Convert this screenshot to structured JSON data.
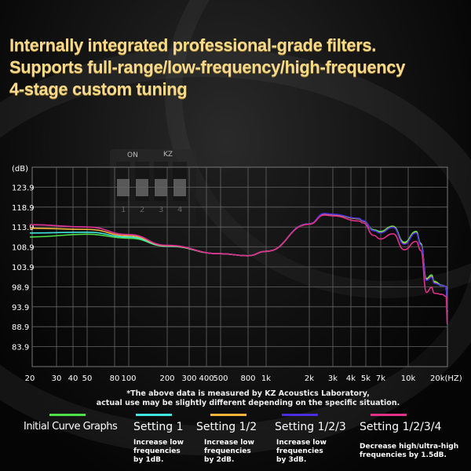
{
  "headline": {
    "line1": "Internally integrated professional-grade filters.",
    "line2": "Supports full-range/low-frequency/high-frequency",
    "line3": "4-stage custom tuning"
  },
  "dip_switch": {
    "on_label": "ON",
    "brand_label": "KZ",
    "numbers": [
      "1",
      "2",
      "3",
      "4"
    ]
  },
  "footnote": {
    "line1": "*The above data is measured by KZ Acoustics Laboratory,",
    "line2": "actual use may be slightly different depending on the specific situation."
  },
  "chart_data": {
    "type": "line",
    "title": "",
    "ylabel": "(dB)",
    "xlabel": "(HZ)",
    "xscale": "log",
    "ylim": [
      78.9,
      128.9
    ],
    "xlim": [
      20,
      20000
    ],
    "grid": true,
    "yticks": [
      123.9,
      118.9,
      113.9,
      108.9,
      103.9,
      98.9,
      93.9,
      88.9,
      83.9
    ],
    "ytick_labels": [
      "123.9",
      "118.9",
      "113.9",
      "108.9",
      "103.9",
      "98.9",
      "93.9",
      "88.9",
      "83.9"
    ],
    "xticks": [
      20,
      30,
      40,
      50,
      80,
      100,
      200,
      300,
      400,
      500,
      800,
      1000,
      2000,
      3000,
      4000,
      5000,
      7000,
      10000,
      20000
    ],
    "xtick_labels": [
      "20",
      "30",
      "40",
      "50",
      "80",
      "100",
      "200",
      "300",
      "400",
      "500",
      "800",
      "1k",
      "2k",
      "3k",
      "4k",
      "5k",
      "7k",
      "10k",
      "20k(HZ)"
    ],
    "legend_placement": "bottom",
    "series": [
      {
        "name": "Initial Curve Graphs",
        "color": "#4ee04a",
        "description": "",
        "x": [
          20,
          50,
          100,
          200,
          500,
          800,
          1000,
          2000,
          2600,
          3000,
          4500,
          4800,
          6000,
          6900,
          8200,
          9500,
          11500,
          12500,
          13800,
          15100,
          15800,
          18200,
          19500,
          20000
        ],
        "y": [
          111.4,
          112.1,
          111.1,
          109.1,
          107.2,
          106.7,
          107.8,
          114.7,
          117.1,
          117.0,
          116.0,
          115.4,
          113.2,
          112.8,
          114.1,
          110.1,
          112.8,
          109.8,
          101.0,
          101.9,
          100.3,
          99.3,
          99.0,
          92.7
        ]
      },
      {
        "name": "Setting 1",
        "color": "#3fe6e0",
        "description": "Increase low frequencies by 1dB.",
        "x": [
          20,
          50,
          100,
          200,
          500,
          800,
          1000,
          2000,
          2600,
          3000,
          4500,
          4800,
          6000,
          6900,
          8200,
          9500,
          11500,
          12500,
          13800,
          15100,
          15800,
          18200,
          19500,
          20000
        ],
        "y": [
          112.4,
          112.6,
          111.4,
          109.1,
          107.2,
          106.7,
          107.8,
          114.7,
          117.1,
          117.0,
          116.0,
          115.4,
          113.0,
          112.5,
          113.9,
          109.8,
          112.5,
          109.5,
          100.7,
          101.5,
          100.0,
          99.2,
          99.0,
          92.7
        ]
      },
      {
        "name": "Setting 1/2",
        "color": "#f5b43a",
        "description": "Increase low frequencies by 2dB.",
        "x": [
          20,
          50,
          100,
          200,
          500,
          800,
          1000,
          2000,
          2600,
          3000,
          4500,
          4800,
          6000,
          6900,
          8200,
          9500,
          11500,
          12500,
          13800,
          15100,
          15800,
          18200,
          19500,
          20000
        ],
        "y": [
          113.6,
          113.3,
          111.7,
          109.2,
          107.2,
          106.7,
          107.8,
          114.7,
          117.1,
          117.0,
          116.0,
          115.4,
          113.0,
          112.5,
          113.9,
          109.8,
          112.5,
          109.5,
          100.7,
          101.5,
          100.0,
          99.2,
          99.0,
          92.7
        ]
      },
      {
        "name": "Setting 1/2/3",
        "color": "#4a2ee0",
        "description": "Increase low frequencies by 3dB.",
        "x": [
          20,
          50,
          100,
          200,
          500,
          800,
          1000,
          2000,
          2600,
          3000,
          4500,
          4800,
          6000,
          6900,
          8200,
          9500,
          11500,
          12500,
          13800,
          15100,
          15800,
          18200,
          19500,
          20000
        ],
        "y": [
          114.5,
          113.9,
          112.0,
          109.3,
          107.2,
          106.7,
          107.8,
          114.7,
          117.3,
          117.1,
          116.1,
          115.5,
          113.0,
          112.4,
          113.8,
          109.6,
          112.4,
          109.4,
          100.5,
          101.3,
          99.8,
          99.2,
          99.0,
          92.9
        ]
      },
      {
        "name": "Setting 1/2/3/4",
        "color": "#e0308a",
        "description": "Decrease high/ultra-high frequencies by 1.5dB.",
        "x": [
          20,
          50,
          100,
          200,
          500,
          800,
          1000,
          2000,
          2600,
          3000,
          4500,
          4800,
          6000,
          6900,
          8200,
          9500,
          11500,
          12500,
          13800,
          15100,
          15800,
          18200,
          19500,
          20000
        ],
        "y": [
          114.5,
          113.9,
          112.0,
          109.3,
          107.2,
          106.7,
          107.8,
          114.6,
          116.9,
          116.7,
          115.4,
          114.9,
          111.8,
          110.9,
          112.2,
          108.2,
          110.3,
          108.0,
          97.5,
          98.8,
          97.3,
          97.0,
          96.5,
          89.5
        ]
      }
    ]
  }
}
